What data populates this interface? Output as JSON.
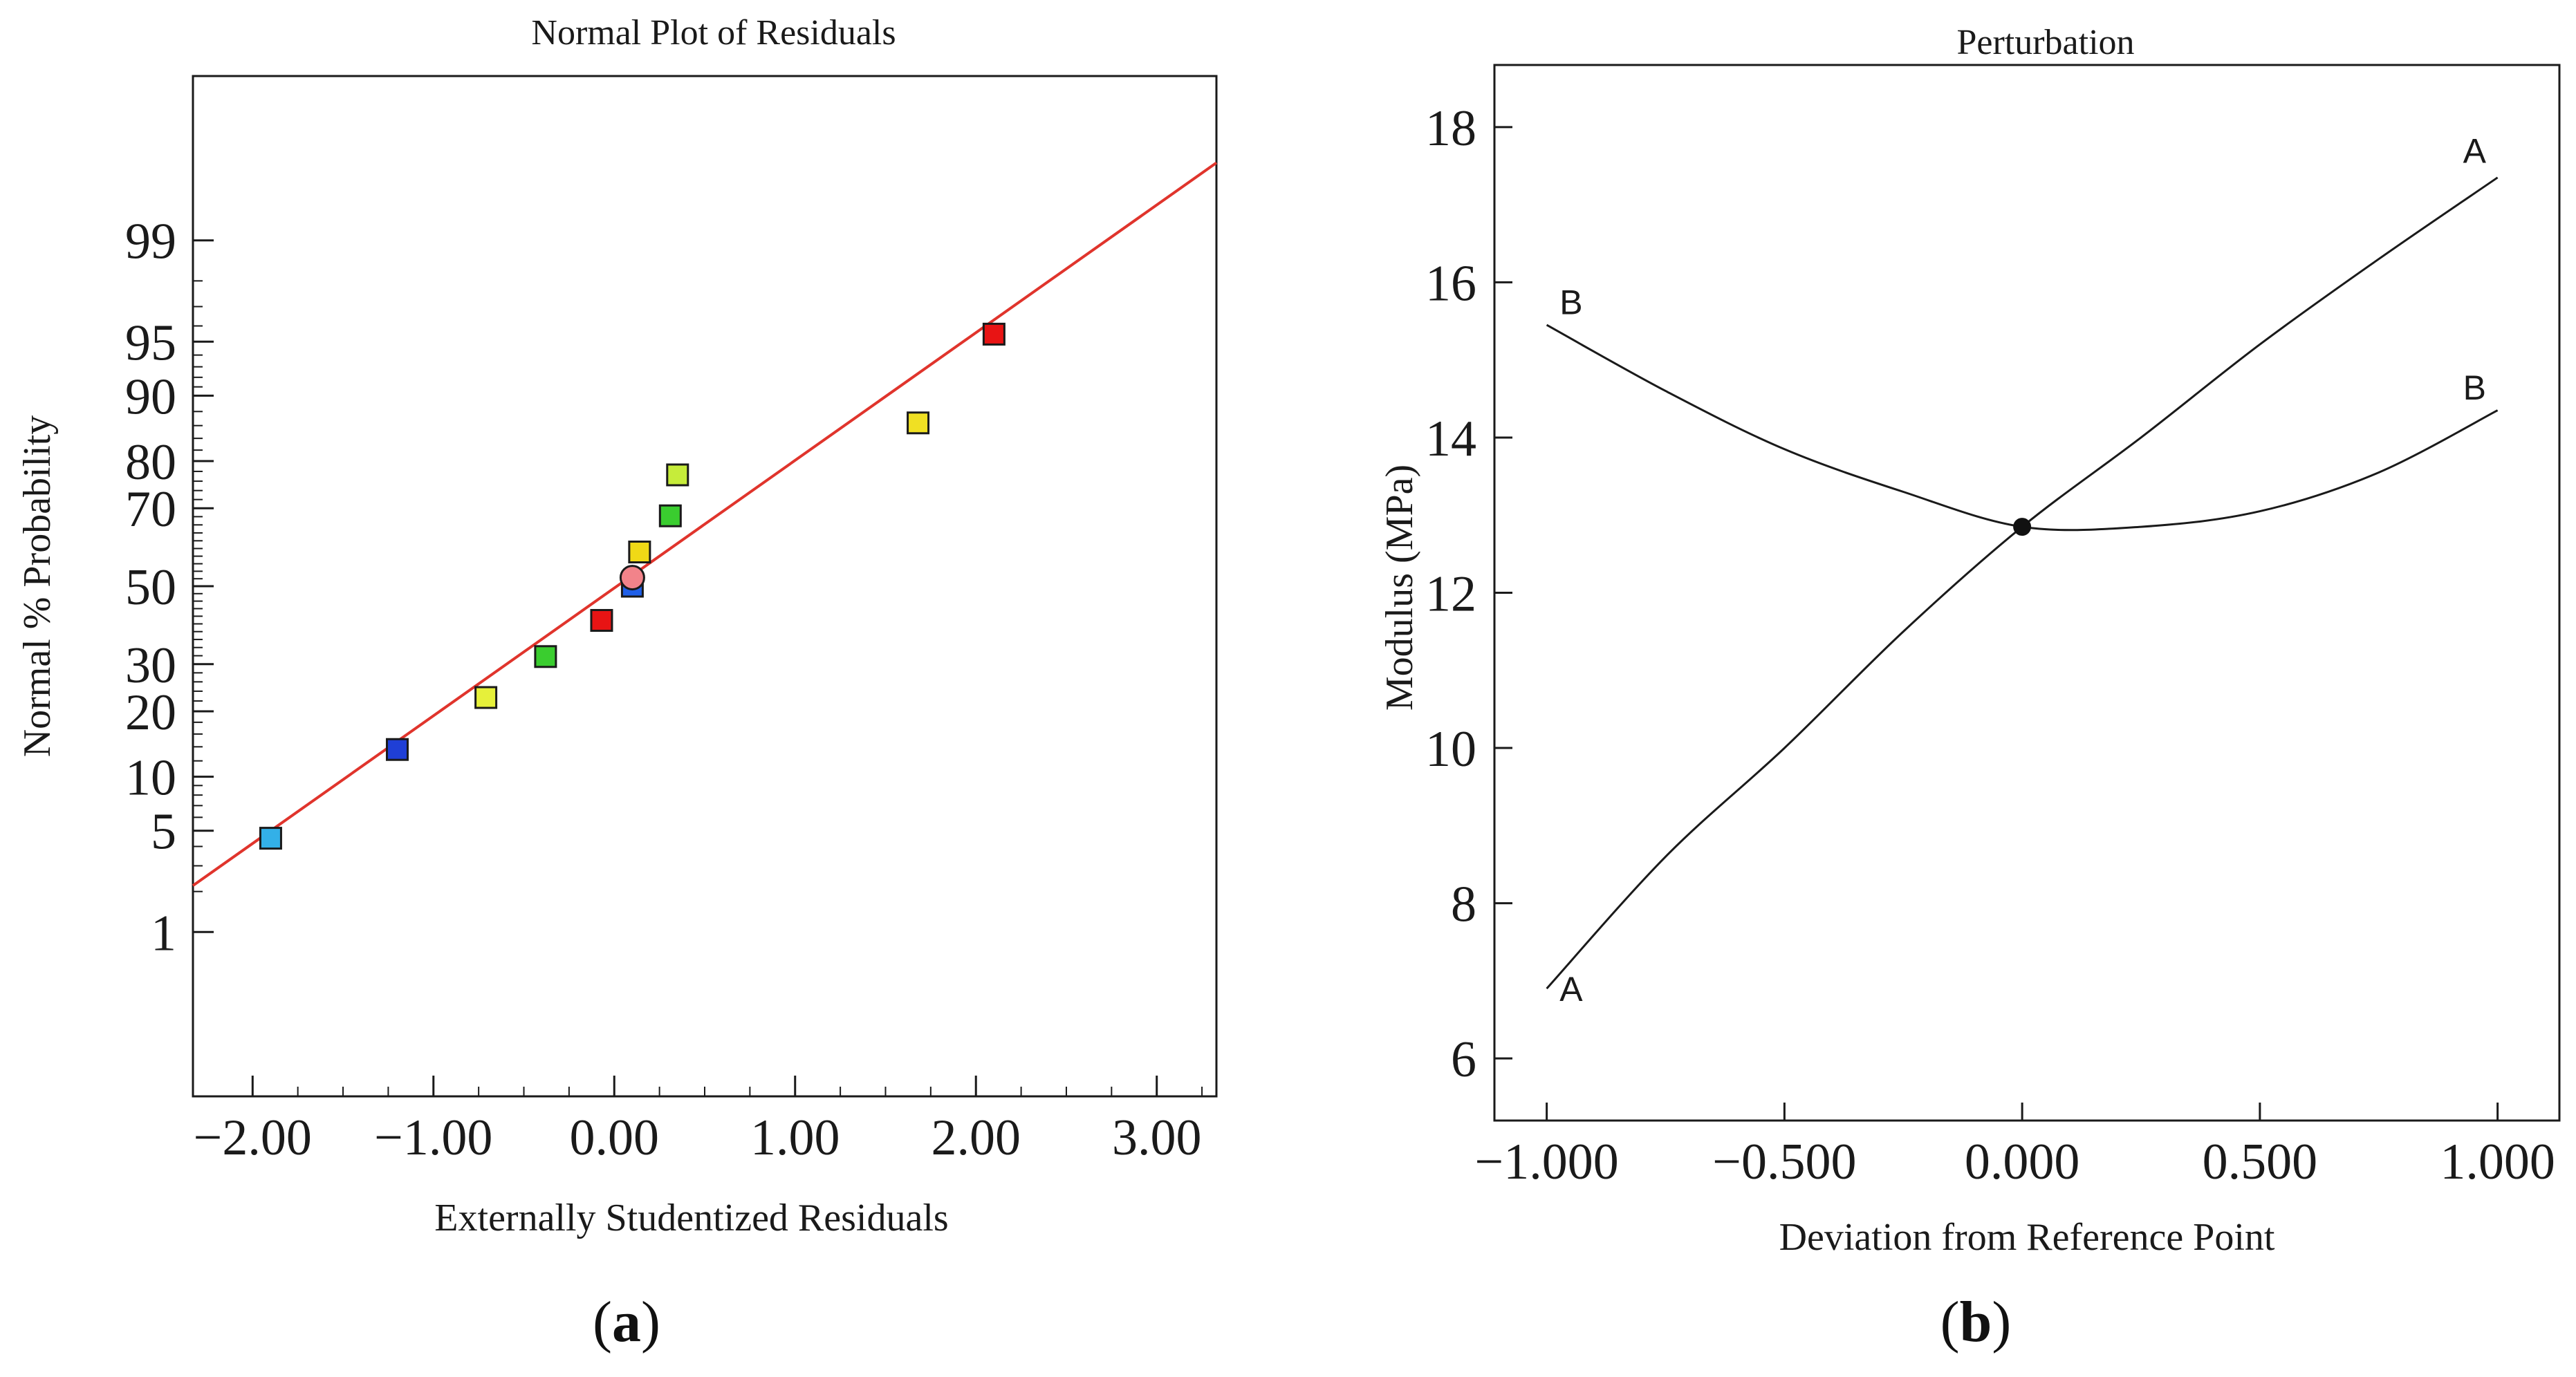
{
  "chart_data": [
    {
      "type": "scatter",
      "title": "Normal Plot of Residuals",
      "xlabel": "Externally Studentized Residuals",
      "ylabel": "Normal % Probability",
      "panel_label": "a",
      "xlim": [
        -2.33,
        3.33
      ],
      "ylim": [
        0.03,
        99.97
      ],
      "x_ticks": [
        -2.0,
        -1.0,
        0.0,
        1.0,
        2.0,
        3.0
      ],
      "x_tick_labels": [
        "−2.00",
        "−1.00",
        "0.00",
        "1.00",
        "2.00",
        "3.00"
      ],
      "y_ticks": [
        1,
        5,
        10,
        20,
        30,
        50,
        70,
        80,
        90,
        95,
        99
      ],
      "y_tick_labels": [
        "1",
        "5",
        "10",
        "20",
        "30",
        "50",
        "70",
        "80",
        "90",
        "95",
        "99"
      ],
      "fit_line": {
        "x": [
          -2.33,
          3.33
        ],
        "y": [
          2.2,
          99.78
        ],
        "color": "#e0342c"
      },
      "points": [
        {
          "x": -1.9,
          "y": 4.5,
          "color": "#33b0e8",
          "marker": "square"
        },
        {
          "x": -1.2,
          "y": 13.6,
          "color": "#1f3fd6",
          "marker": "square"
        },
        {
          "x": -0.71,
          "y": 22.7,
          "color": "#e6f03a",
          "marker": "square"
        },
        {
          "x": -0.38,
          "y": 31.8,
          "color": "#3acd2f",
          "marker": "square"
        },
        {
          "x": -0.07,
          "y": 40.9,
          "color": "#e81414",
          "marker": "square"
        },
        {
          "x": 0.1,
          "y": 50.0,
          "color": "#1f5fe8",
          "marker": "square"
        },
        {
          "x": 0.1,
          "y": 52.3,
          "color": "#f2838a",
          "marker": "circle"
        },
        {
          "x": 0.14,
          "y": 59.1,
          "color": "#f0d916",
          "marker": "square"
        },
        {
          "x": 0.31,
          "y": 68.2,
          "color": "#3acd2f",
          "marker": "square"
        },
        {
          "x": 0.35,
          "y": 77.3,
          "color": "#c6ec3a",
          "marker": "square"
        },
        {
          "x": 1.68,
          "y": 86.4,
          "color": "#f0e023",
          "marker": "square"
        },
        {
          "x": 2.1,
          "y": 95.5,
          "color": "#e81414",
          "marker": "square"
        }
      ]
    },
    {
      "type": "line",
      "title": "Perturbation",
      "xlabel": "Deviation from Reference Point",
      "ylabel": "Modulus (MPa)",
      "panel_label": "b",
      "xlim": [
        -1.11,
        1.13
      ],
      "ylim": [
        5.2,
        18.8
      ],
      "x_ticks": [
        -1.0,
        -0.5,
        0.0,
        0.5,
        1.0
      ],
      "x_tick_labels": [
        "−1.000",
        "−0.500",
        "0.000",
        "0.500",
        "1.000"
      ],
      "y_ticks": [
        6,
        8,
        10,
        12,
        14,
        16,
        18
      ],
      "y_tick_labels": [
        "6",
        "8",
        "10",
        "12",
        "14",
        "16",
        "18"
      ],
      "reference_point": {
        "x": 0.0,
        "y": 12.85
      },
      "series": [
        {
          "name": "A",
          "x": [
            -1.0,
            -0.75,
            -0.5,
            -0.25,
            0.0,
            0.25,
            0.5,
            0.75,
            1.0
          ],
          "y": [
            6.9,
            8.6,
            10.0,
            11.5,
            12.85,
            14.0,
            15.2,
            16.3,
            17.35
          ],
          "label_at": [
            [
              -0.97,
              6.9
            ],
            [
              0.97,
              17.7
            ]
          ]
        },
        {
          "name": "B",
          "x": [
            -1.0,
            -0.75,
            -0.5,
            -0.25,
            0.0,
            0.25,
            0.5,
            0.75,
            1.0
          ],
          "y": [
            15.45,
            14.6,
            13.85,
            13.3,
            12.85,
            12.85,
            13.05,
            13.55,
            14.35
          ],
          "label_at": [
            [
              -0.97,
              15.75
            ],
            [
              0.97,
              14.65
            ]
          ]
        }
      ]
    }
  ]
}
